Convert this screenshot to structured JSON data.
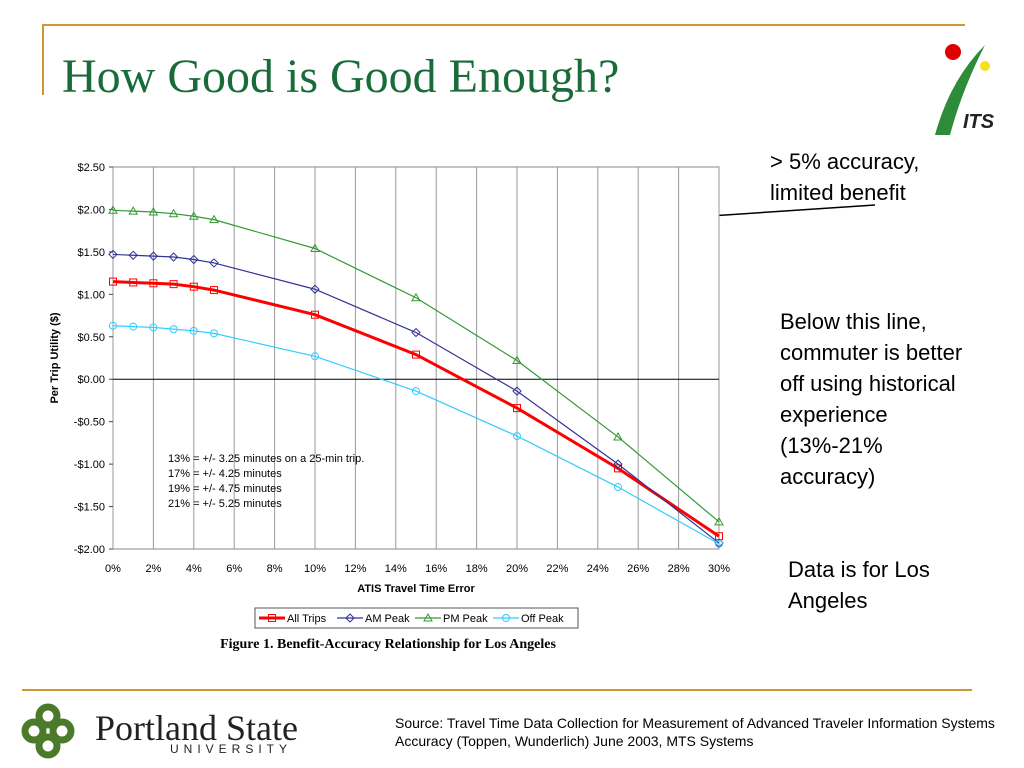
{
  "slide": {
    "title": "How Good is Good Enough?",
    "notes": [
      "> 5% accuracy, limited benefit",
      "Below this line, commuter is better off using historical experience (13%-21% accuracy)",
      "Data is for Los Angeles"
    ],
    "source": "Source: Travel Time Data Collection for Measurement of Advanced Traveler Information Systems Accuracy (Toppen, Wunderlich) June 2003, MTS Systems",
    "logo": {
      "name": "Portland State",
      "subtitle": "UNIVERSITY"
    },
    "badge": "ITS"
  },
  "chart_data": {
    "type": "line",
    "caption": "Figure 1. Benefit-Accuracy Relationship for Los Angeles",
    "xlabel": "ATIS Travel Time Error",
    "ylabel": "Per Trip Utility ($)",
    "annotations": [
      "13% = +/- 3.25 minutes on a 25-min trip.",
      "17% = +/- 4.25 minutes",
      "19% = +/- 4.75 minutes",
      "21% = +/- 5.25 minutes"
    ],
    "x": [
      0,
      1,
      2,
      3,
      4,
      5,
      10,
      15,
      20,
      25,
      30
    ],
    "series": [
      {
        "name": "All Trips",
        "color": "#ff0000",
        "marker": "square",
        "values": [
          1.15,
          1.14,
          1.13,
          1.12,
          1.09,
          1.05,
          0.76,
          0.29,
          -0.34,
          -1.05,
          -1.85
        ]
      },
      {
        "name": "AM Peak",
        "color": "#333399",
        "marker": "diamond",
        "values": [
          1.47,
          1.46,
          1.45,
          1.44,
          1.41,
          1.37,
          1.06,
          0.55,
          -0.14,
          -1.0,
          -1.93
        ]
      },
      {
        "name": "PM Peak",
        "color": "#339933",
        "marker": "triangle",
        "values": [
          1.99,
          1.98,
          1.97,
          1.95,
          1.92,
          1.88,
          1.54,
          0.96,
          0.22,
          -0.68,
          -1.68
        ]
      },
      {
        "name": "Off Peak",
        "color": "#33ccff",
        "marker": "circle",
        "values": [
          0.63,
          0.62,
          0.61,
          0.59,
          0.57,
          0.54,
          0.27,
          -0.14,
          -0.67,
          -1.27,
          -1.94
        ]
      }
    ],
    "xlim": [
      0,
      30
    ],
    "xticks": [
      {
        "value": 0,
        "label": "0%"
      },
      {
        "value": 2,
        "label": "2%"
      },
      {
        "value": 4,
        "label": "4%"
      },
      {
        "value": 6,
        "label": "6%"
      },
      {
        "value": 8,
        "label": "8%"
      },
      {
        "value": 10,
        "label": "10%"
      },
      {
        "value": 12,
        "label": "12%"
      },
      {
        "value": 14,
        "label": "14%"
      },
      {
        "value": 16,
        "label": "16%"
      },
      {
        "value": 18,
        "label": "18%"
      },
      {
        "value": 20,
        "label": "20%"
      },
      {
        "value": 22,
        "label": "22%"
      },
      {
        "value": 24,
        "label": "24%"
      },
      {
        "value": 26,
        "label": "26%"
      },
      {
        "value": 28,
        "label": "28%"
      },
      {
        "value": 30,
        "label": "30%"
      }
    ],
    "ylim": [
      -2,
      2.5
    ],
    "yticks": [
      {
        "value": 2.5,
        "label": "$2.50"
      },
      {
        "value": 2,
        "label": "$2.00"
      },
      {
        "value": 1.5,
        "label": "$1.50"
      },
      {
        "value": 1,
        "label": "$1.00"
      },
      {
        "value": 0.5,
        "label": "$0.50"
      },
      {
        "value": 0,
        "label": "$0.00"
      },
      {
        "value": -0.5,
        "label": "-$0.50"
      },
      {
        "value": -1,
        "label": "-$1.00"
      },
      {
        "value": -1.5,
        "label": "-$1.50"
      },
      {
        "value": -2,
        "label": "-$2.00"
      }
    ],
    "grid": "x",
    "legend": "bottom"
  }
}
